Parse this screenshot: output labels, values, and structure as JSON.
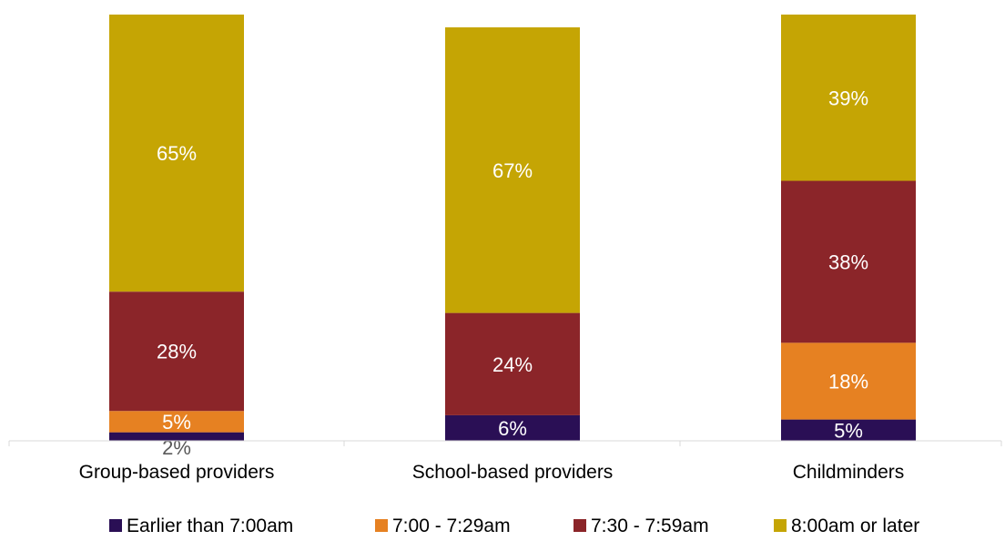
{
  "chart_data": {
    "type": "bar",
    "stacked": true,
    "orientation": "vertical",
    "categories": [
      "Group-based providers",
      "School-based providers",
      "Childminders"
    ],
    "series": [
      {
        "name": "Earlier than 7:00am",
        "color": "#2a0f55",
        "values": [
          2,
          6,
          5
        ],
        "labels": [
          "2%",
          "6%",
          "5%"
        ]
      },
      {
        "name": "7:00 - 7:29am",
        "color": "#e68122",
        "values": [
          5,
          0,
          18
        ],
        "labels": [
          "5%",
          "",
          "18%"
        ]
      },
      {
        "name": "7:30 - 7:59am",
        "color": "#8b2529",
        "values": [
          28,
          24,
          38
        ],
        "labels": [
          "28%",
          "24%",
          "38%"
        ]
      },
      {
        "name": "8:00am or later",
        "color": "#c5a504",
        "values": [
          65,
          67,
          39
        ],
        "labels": [
          "65%",
          "67%",
          "39%"
        ]
      }
    ],
    "ylim": [
      0,
      100
    ],
    "legend": "bottom",
    "grid": false
  }
}
